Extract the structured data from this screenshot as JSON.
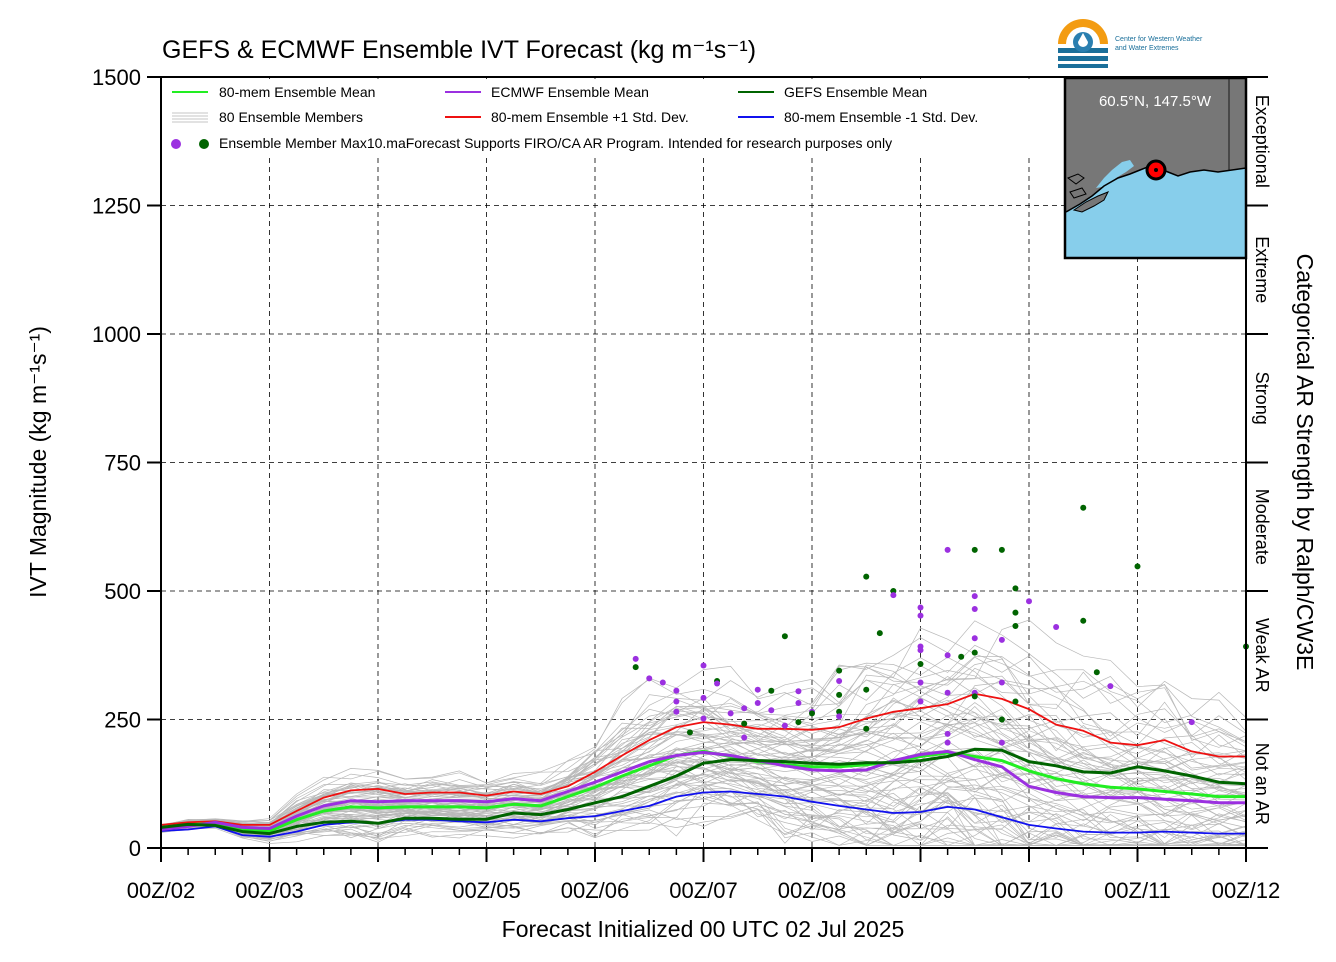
{
  "chart_data": {
    "type": "line",
    "title": "GEFS & ECMWF Ensemble IVT Forecast (kg m⁻¹s⁻¹)",
    "xlabel": "Forecast Initialized 00 UTC 02 Jul 2025",
    "ylabel": "IVT Magnitude (kg m⁻¹s⁻¹)",
    "right_label": "Categorical AR Strength by Ralph/CW3E",
    "xlim": [
      0,
      240
    ],
    "ylim": [
      0,
      1500
    ],
    "x_ticks": [
      {
        "x": 0,
        "label": "00Z/02"
      },
      {
        "x": 24,
        "label": "00Z/03"
      },
      {
        "x": 48,
        "label": "00Z/04"
      },
      {
        "x": 72,
        "label": "00Z/05"
      },
      {
        "x": 96,
        "label": "00Z/06"
      },
      {
        "x": 120,
        "label": "00Z/07"
      },
      {
        "x": 144,
        "label": "00Z/08"
      },
      {
        "x": 168,
        "label": "00Z/09"
      },
      {
        "x": 192,
        "label": "00Z/10"
      },
      {
        "x": 216,
        "label": "00Z/11"
      },
      {
        "x": 240,
        "label": "00Z/12"
      }
    ],
    "y_ticks": [
      {
        "y": 0,
        "label": "0"
      },
      {
        "y": 250,
        "label": "250"
      },
      {
        "y": 500,
        "label": "500"
      },
      {
        "y": 750,
        "label": "750"
      },
      {
        "y": 1000,
        "label": "1000"
      },
      {
        "y": 1250,
        "label": "1250"
      },
      {
        "y": 1500,
        "label": "1500"
      }
    ],
    "grid": true,
    "categories": [
      {
        "label": "Not an AR",
        "ymin": 0,
        "ymax": 250
      },
      {
        "label": "Weak AR",
        "ymin": 250,
        "ymax": 500
      },
      {
        "label": "Moderate",
        "ymin": 500,
        "ymax": 750
      },
      {
        "label": "Strong",
        "ymin": 750,
        "ymax": 1000
      },
      {
        "label": "Extreme",
        "ymin": 1000,
        "ymax": 1250
      },
      {
        "label": "Exceptional",
        "ymin": 1250,
        "ymax": 1500
      }
    ],
    "legend": {
      "placement": "top-left",
      "entries": [
        {
          "label": "80-mem Ensemble Mean",
          "color": "#22ee22"
        },
        {
          "label": "ECMWF Ensemble Mean",
          "color": "#9b30e0"
        },
        {
          "label": "GEFS Ensemble Mean",
          "color": "#006400"
        },
        {
          "label": "80 Ensemble Members",
          "color": "#b0b0b0"
        },
        {
          "label": "80-mem Ensemble +1 Std. Dev.",
          "color": "#ee1111"
        },
        {
          "label": "80-mem Ensemble -1 Std. Dev.",
          "color": "#1111ee"
        }
      ],
      "max_label": "Ensemble Member Max",
      "note": "10.maForecast Supports FIRO/CA AR Program. Intended for research purposes only"
    },
    "x": [
      0,
      6,
      12,
      18,
      24,
      30,
      36,
      42,
      48,
      54,
      60,
      66,
      72,
      78,
      84,
      90,
      96,
      102,
      108,
      114,
      120,
      126,
      132,
      138,
      144,
      150,
      156,
      162,
      168,
      174,
      180,
      186,
      192,
      198,
      204,
      210,
      216,
      222,
      228,
      234,
      240
    ],
    "series": [
      {
        "name": "80-mem Ensemble Mean",
        "color": "#22ee22",
        "values": [
          38,
          45,
          48,
          35,
          33,
          55,
          72,
          80,
          78,
          80,
          80,
          80,
          78,
          85,
          82,
          100,
          118,
          140,
          160,
          180,
          188,
          178,
          168,
          162,
          158,
          158,
          162,
          168,
          178,
          185,
          178,
          170,
          150,
          135,
          125,
          118,
          115,
          110,
          105,
          100,
          100
        ]
      },
      {
        "name": "ECMWF Ensemble Mean",
        "color": "#9b30e0",
        "values": [
          36,
          42,
          50,
          40,
          38,
          62,
          82,
          92,
          90,
          92,
          92,
          92,
          90,
          96,
          92,
          110,
          128,
          148,
          168,
          180,
          186,
          180,
          170,
          160,
          152,
          150,
          152,
          170,
          182,
          188,
          172,
          158,
          120,
          108,
          100,
          98,
          98,
          95,
          92,
          88,
          88
        ]
      },
      {
        "name": "GEFS Ensemble Mean",
        "color": "#006400",
        "values": [
          40,
          46,
          44,
          32,
          28,
          42,
          50,
          52,
          48,
          58,
          58,
          56,
          56,
          68,
          65,
          75,
          88,
          100,
          120,
          140,
          165,
          172,
          170,
          168,
          165,
          163,
          166,
          166,
          170,
          178,
          192,
          190,
          168,
          160,
          148,
          146,
          158,
          150,
          140,
          128,
          125
        ]
      },
      {
        "name": "80-mem Ensemble +1 Std. Dev.",
        "color": "#ee1111",
        "values": [
          45,
          50,
          52,
          45,
          45,
          72,
          98,
          112,
          115,
          105,
          108,
          108,
          102,
          110,
          105,
          120,
          148,
          180,
          210,
          235,
          245,
          240,
          232,
          232,
          230,
          235,
          252,
          265,
          272,
          280,
          300,
          290,
          270,
          240,
          228,
          205,
          200,
          210,
          188,
          178,
          178
        ]
      },
      {
        "name": "80-mem Ensemble -1 Std. Dev.",
        "color": "#1111ee",
        "values": [
          33,
          36,
          42,
          25,
          22,
          32,
          45,
          50,
          48,
          55,
          55,
          52,
          50,
          55,
          52,
          58,
          62,
          72,
          82,
          100,
          108,
          110,
          105,
          100,
          90,
          82,
          75,
          68,
          70,
          80,
          75,
          60,
          45,
          38,
          32,
          30,
          30,
          32,
          30,
          28,
          28
        ]
      }
    ],
    "max_markers": [
      {
        "x": 105,
        "y": 368,
        "model": "ECMWF"
      },
      {
        "x": 105,
        "y": 352,
        "model": "GEFS"
      },
      {
        "x": 108,
        "y": 330,
        "model": "ECMWF"
      },
      {
        "x": 111,
        "y": 322,
        "model": "ECMWF"
      },
      {
        "x": 114,
        "y": 306,
        "model": "ECMWF"
      },
      {
        "x": 114,
        "y": 285,
        "model": "ECMWF"
      },
      {
        "x": 114,
        "y": 265,
        "model": "ECMWF"
      },
      {
        "x": 117,
        "y": 225,
        "model": "GEFS"
      },
      {
        "x": 120,
        "y": 355,
        "model": "ECMWF"
      },
      {
        "x": 120,
        "y": 292,
        "model": "ECMWF"
      },
      {
        "x": 120,
        "y": 252,
        "model": "ECMWF"
      },
      {
        "x": 123,
        "y": 325,
        "model": "GEFS"
      },
      {
        "x": 123,
        "y": 320,
        "model": "ECMWF"
      },
      {
        "x": 126,
        "y": 262,
        "model": "ECMWF"
      },
      {
        "x": 129,
        "y": 272,
        "model": "ECMWF"
      },
      {
        "x": 129,
        "y": 242,
        "model": "GEFS"
      },
      {
        "x": 129,
        "y": 215,
        "model": "ECMWF"
      },
      {
        "x": 132,
        "y": 308,
        "model": "ECMWF"
      },
      {
        "x": 132,
        "y": 282,
        "model": "ECMWF"
      },
      {
        "x": 135,
        "y": 306,
        "model": "GEFS"
      },
      {
        "x": 135,
        "y": 268,
        "model": "ECMWF"
      },
      {
        "x": 138,
        "y": 412,
        "model": "GEFS"
      },
      {
        "x": 138,
        "y": 238,
        "model": "ECMWF"
      },
      {
        "x": 141,
        "y": 305,
        "model": "ECMWF"
      },
      {
        "x": 141,
        "y": 282,
        "model": "ECMWF"
      },
      {
        "x": 141,
        "y": 245,
        "model": "GEFS"
      },
      {
        "x": 144,
        "y": 265,
        "model": "ECMWF"
      },
      {
        "x": 144,
        "y": 262,
        "model": "GEFS"
      },
      {
        "x": 150,
        "y": 345,
        "model": "GEFS"
      },
      {
        "x": 150,
        "y": 325,
        "model": "ECMWF"
      },
      {
        "x": 150,
        "y": 298,
        "model": "GEFS"
      },
      {
        "x": 150,
        "y": 265,
        "model": "GEFS"
      },
      {
        "x": 150,
        "y": 256,
        "model": "ECMWF"
      },
      {
        "x": 156,
        "y": 528,
        "model": "GEFS"
      },
      {
        "x": 156,
        "y": 308,
        "model": "GEFS"
      },
      {
        "x": 156,
        "y": 232,
        "model": "GEFS"
      },
      {
        "x": 159,
        "y": 418,
        "model": "GEFS"
      },
      {
        "x": 162,
        "y": 500,
        "model": "GEFS"
      },
      {
        "x": 162,
        "y": 492,
        "model": "ECMWF"
      },
      {
        "x": 168,
        "y": 468,
        "model": "ECMWF"
      },
      {
        "x": 168,
        "y": 452,
        "model": "ECMWF"
      },
      {
        "x": 168,
        "y": 392,
        "model": "ECMWF"
      },
      {
        "x": 168,
        "y": 385,
        "model": "ECMWF"
      },
      {
        "x": 168,
        "y": 358,
        "model": "GEFS"
      },
      {
        "x": 168,
        "y": 322,
        "model": "ECMWF"
      },
      {
        "x": 168,
        "y": 285,
        "model": "ECMWF"
      },
      {
        "x": 174,
        "y": 580,
        "model": "ECMWF"
      },
      {
        "x": 174,
        "y": 375,
        "model": "ECMWF"
      },
      {
        "x": 174,
        "y": 302,
        "model": "ECMWF"
      },
      {
        "x": 174,
        "y": 222,
        "model": "ECMWF"
      },
      {
        "x": 174,
        "y": 205,
        "model": "ECMWF"
      },
      {
        "x": 177,
        "y": 372,
        "model": "GEFS"
      },
      {
        "x": 180,
        "y": 580,
        "model": "GEFS"
      },
      {
        "x": 180,
        "y": 490,
        "model": "ECMWF"
      },
      {
        "x": 180,
        "y": 465,
        "model": "ECMWF"
      },
      {
        "x": 180,
        "y": 408,
        "model": "ECMWF"
      },
      {
        "x": 180,
        "y": 380,
        "model": "GEFS"
      },
      {
        "x": 180,
        "y": 302,
        "model": "ECMWF"
      },
      {
        "x": 180,
        "y": 295,
        "model": "GEFS"
      },
      {
        "x": 186,
        "y": 580,
        "model": "GEFS"
      },
      {
        "x": 186,
        "y": 405,
        "model": "ECMWF"
      },
      {
        "x": 186,
        "y": 322,
        "model": "ECMWF"
      },
      {
        "x": 186,
        "y": 250,
        "model": "GEFS"
      },
      {
        "x": 186,
        "y": 205,
        "model": "ECMWF"
      },
      {
        "x": 189,
        "y": 505,
        "model": "GEFS"
      },
      {
        "x": 189,
        "y": 458,
        "model": "GEFS"
      },
      {
        "x": 189,
        "y": 432,
        "model": "GEFS"
      },
      {
        "x": 189,
        "y": 285,
        "model": "GEFS"
      },
      {
        "x": 192,
        "y": 480,
        "model": "ECMWF"
      },
      {
        "x": 198,
        "y": 430,
        "model": "ECMWF"
      },
      {
        "x": 204,
        "y": 662,
        "model": "GEFS"
      },
      {
        "x": 204,
        "y": 442,
        "model": "GEFS"
      },
      {
        "x": 207,
        "y": 342,
        "model": "GEFS"
      },
      {
        "x": 210,
        "y": 315,
        "model": "ECMWF"
      },
      {
        "x": 216,
        "y": 548,
        "model": "GEFS"
      },
      {
        "x": 228,
        "y": 245,
        "model": "ECMWF"
      },
      {
        "x": 240,
        "y": 392,
        "model": "GEFS"
      }
    ]
  },
  "map_inset": {
    "location_label": "60.5°N, 147.5°W",
    "water_color": "#87ceeb",
    "land_color": "#7f7f7f",
    "marker_color": "#ff0000"
  },
  "logo": {
    "line1": "Center for Western Weather",
    "line2": "and Water Extremes"
  }
}
